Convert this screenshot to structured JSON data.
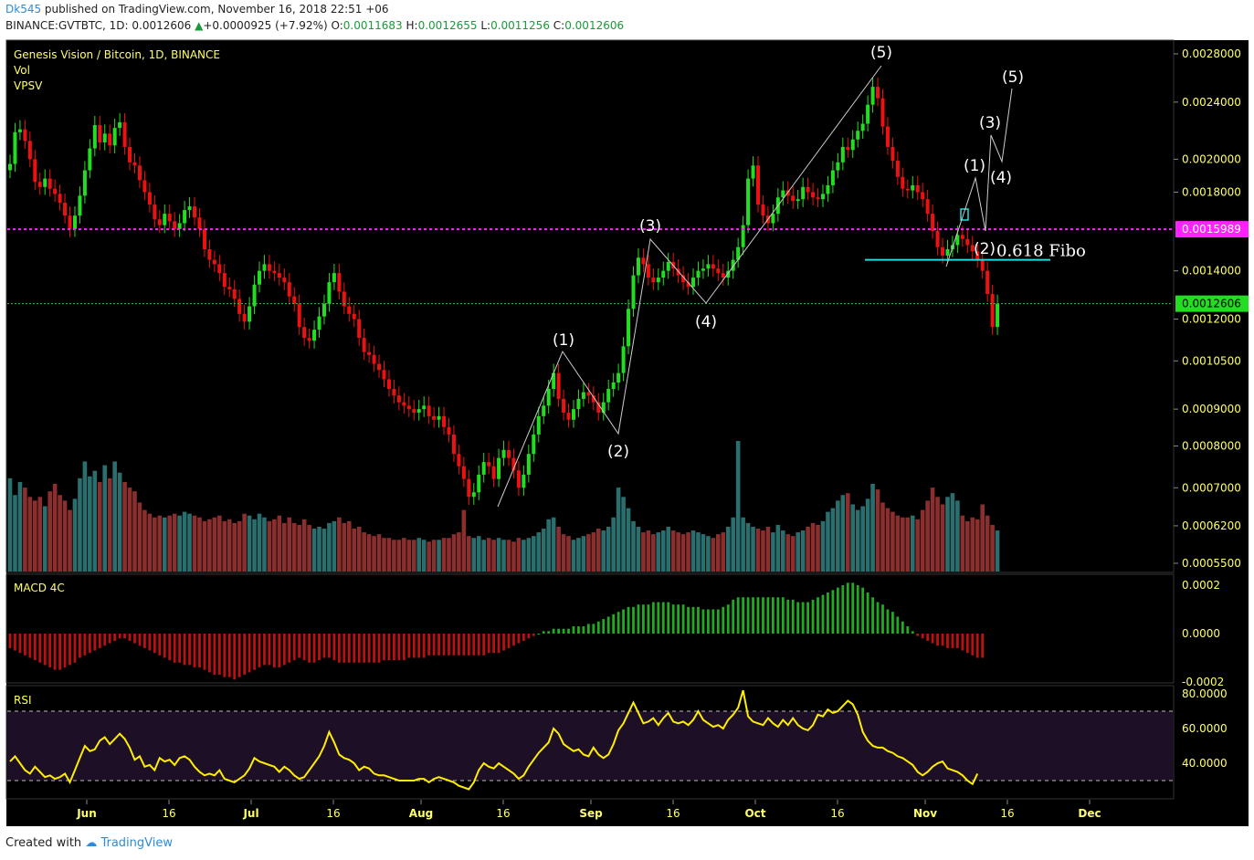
{
  "header": {
    "user": "Dk545",
    "published": "published on TradingView.com, November 16, 2018 22:51 +06",
    "symbol": "BINANCE:GVTBTC, 1D",
    "last": "0.0012606",
    "arrow": "▲",
    "change": "+0.0000925 (+7.92%)",
    "o_label": "O:",
    "o": "0.0011683",
    "h_label": "H:",
    "h": "0.0012655",
    "l_label": "L:",
    "l": "0.0011256",
    "c_label": "C:",
    "c": "0.0012606"
  },
  "legend": {
    "title": "Genesis Vision / Bitcoin, 1D, BINANCE",
    "vol": "Vol",
    "vpsv": "VPSV",
    "macd": "MACD 4C",
    "rsi": "RSI"
  },
  "footer": {
    "created": "Created with",
    "brand": "TradingView"
  },
  "colors": {
    "background": "#000000",
    "up": "#22dd22",
    "down": "#ee1111",
    "vol_up": "#2a6e6e",
    "vol_down": "#8a2e2e",
    "macd_pos": "#22aa22",
    "macd_neg": "#bb1111",
    "rsi_line": "#ffee00",
    "rsi_band": "#1c0f26",
    "magenta_line": "#ff22ff",
    "fibo_line": "#22dddd",
    "axis_text": "#ffff66"
  },
  "chart_data": {
    "type": "candlestick",
    "title": "Genesis Vision / Bitcoin, 1D, BINANCE",
    "y_scale": "log",
    "price_ticks": [
      "0.0028000",
      "0.0024000",
      "0.0020000",
      "0.0018000",
      "0.0014000",
      "0.0012000",
      "0.0010500",
      "0.0009000",
      "0.0008000",
      "0.0007000",
      "0.0006200",
      "0.0005500"
    ],
    "price_tick_values": [
      0.0028,
      0.0024,
      0.002,
      0.0018,
      0.0014,
      0.0012,
      0.00105,
      0.0009,
      0.0008,
      0.0007,
      0.00062,
      0.00055
    ],
    "x_ticks": [
      "Jun",
      "16",
      "Jul",
      "16",
      "Aug",
      "16",
      "Sep",
      "16",
      "Oct",
      "16",
      "Nov",
      "16",
      "Dec"
    ],
    "marked_levels": [
      {
        "label": "0.0015989",
        "value": 0.0015989,
        "color": "#ff22ff"
      },
      {
        "label": "0.0012606",
        "value": 0.0012606,
        "color": "#22dd22"
      }
    ],
    "fibo": {
      "label": "0.618 Fibo",
      "value": 0.00145
    },
    "closes": [
      0.00197,
      0.00218,
      0.0022,
      0.00212,
      0.002,
      0.00186,
      0.00183,
      0.00188,
      0.00182,
      0.00179,
      0.00174,
      0.00167,
      0.0016,
      0.00167,
      0.00178,
      0.00193,
      0.00207,
      0.00223,
      0.00211,
      0.00217,
      0.00209,
      0.00221,
      0.00225,
      0.00208,
      0.00198,
      0.00196,
      0.00187,
      0.0018,
      0.00173,
      0.00165,
      0.00162,
      0.00168,
      0.00164,
      0.0016,
      0.00163,
      0.0017,
      0.00172,
      0.00166,
      0.0016,
      0.0015,
      0.00145,
      0.00143,
      0.00139,
      0.00133,
      0.00132,
      0.00128,
      0.00122,
      0.00119,
      0.00125,
      0.00134,
      0.0014,
      0.00143,
      0.0014,
      0.00139,
      0.00137,
      0.00135,
      0.00129,
      0.00126,
      0.00117,
      0.00113,
      0.00112,
      0.00116,
      0.00121,
      0.00126,
      0.00135,
      0.00139,
      0.00131,
      0.00125,
      0.00122,
      0.0012,
      0.00113,
      0.00108,
      0.00107,
      0.00104,
      0.00102,
      0.00099,
      0.00096,
      0.00094,
      0.00092,
      0.00091,
      0.0009,
      0.00089,
      0.0009,
      0.00091,
      0.00088,
      0.00087,
      0.00088,
      0.00085,
      0.00083,
      0.00078,
      0.00075,
      0.00072,
      0.00068,
      0.00069,
      0.00073,
      0.00076,
      0.00075,
      0.00072,
      0.00077,
      0.00079,
      0.00077,
      0.00074,
      0.0007,
      0.00073,
      0.00078,
      0.00083,
      0.00088,
      0.00091,
      0.00096,
      0.00101,
      0.00093,
      0.00089,
      0.00087,
      0.0009,
      0.00093,
      0.00095,
      0.00094,
      0.00092,
      0.00089,
      0.00092,
      0.00096,
      0.00098,
      0.00101,
      0.0011,
      0.00124,
      0.00138,
      0.00146,
      0.00143,
      0.00137,
      0.00135,
      0.00137,
      0.0014,
      0.00144,
      0.00141,
      0.00138,
      0.00135,
      0.00133,
      0.00137,
      0.0014,
      0.00141,
      0.00143,
      0.00141,
      0.00139,
      0.00137,
      0.0014,
      0.00145,
      0.00151,
      0.00162,
      0.00188,
      0.00196,
      0.00173,
      0.00167,
      0.00163,
      0.00168,
      0.00177,
      0.00181,
      0.00178,
      0.00175,
      0.00176,
      0.00183,
      0.0018,
      0.00177,
      0.00176,
      0.00179,
      0.00184,
      0.00193,
      0.00198,
      0.00208,
      0.00206,
      0.00213,
      0.00219,
      0.00224,
      0.00238,
      0.00252,
      0.00243,
      0.00222,
      0.00208,
      0.00199,
      0.00189,
      0.00182,
      0.00181,
      0.00184,
      0.0018,
      0.00176,
      0.00168,
      0.00159,
      0.00151,
      0.00147,
      0.0015,
      0.00152,
      0.00157,
      0.00155,
      0.00152,
      0.00149,
      0.00145,
      0.0014,
      0.0013,
      0.00117,
      0.00126
    ],
    "volumes": [
      50,
      41,
      48,
      45,
      40,
      38,
      40,
      35,
      43,
      47,
      41,
      38,
      33,
      39,
      50,
      59,
      51,
      54,
      48,
      57,
      50,
      59,
      53,
      48,
      45,
      43,
      37,
      33,
      31,
      29,
      30,
      29,
      30,
      31,
      30,
      32,
      31,
      30,
      29,
      27,
      28,
      29,
      30,
      27,
      28,
      26,
      27,
      31,
      30,
      28,
      31,
      29,
      27,
      28,
      30,
      26,
      29,
      26,
      25,
      28,
      25,
      23,
      24,
      23,
      26,
      27,
      29,
      26,
      27,
      23,
      24,
      21,
      20,
      19,
      20,
      18,
      18,
      17,
      17,
      18,
      17,
      17,
      18,
      17,
      16,
      17,
      17,
      18,
      18,
      20,
      21,
      33,
      19,
      18,
      19,
      17,
      18,
      17,
      18,
      17,
      17,
      16,
      18,
      17,
      18,
      19,
      21,
      23,
      28,
      29,
      24,
      20,
      19,
      17,
      18,
      19,
      20,
      21,
      23,
      22,
      24,
      29,
      45,
      40,
      34,
      27,
      24,
      21,
      22,
      20,
      21,
      22,
      24,
      22,
      21,
      20,
      21,
      22,
      21,
      20,
      19,
      18,
      20,
      21,
      24,
      29,
      70,
      29,
      26,
      24,
      23,
      22,
      24,
      21,
      25,
      22,
      20,
      19,
      21,
      22,
      24,
      26,
      25,
      27,
      32,
      34,
      38,
      41,
      42,
      36,
      33,
      35,
      39,
      47,
      44,
      37,
      34,
      32,
      30,
      29,
      29,
      30,
      28,
      33,
      38,
      45,
      40,
      36,
      40,
      42,
      38,
      30,
      27,
      29,
      28,
      36,
      30,
      25,
      22
    ],
    "macd_hist": [
      -6e-05,
      -7e-05,
      -8e-05,
      -9e-05,
      -0.0001,
      -0.00011,
      -0.00012,
      -0.00013,
      -0.00014,
      -0.00015,
      -0.00015,
      -0.00014,
      -0.00013,
      -0.00012,
      -0.0001,
      -9e-05,
      -8e-05,
      -7e-05,
      -6e-05,
      -5e-05,
      -4e-05,
      -3e-05,
      -2e-05,
      -2e-05,
      -3e-05,
      -4e-05,
      -5e-05,
      -6e-05,
      -7e-05,
      -8e-05,
      -9e-05,
      -0.0001,
      -0.00011,
      -0.00012,
      -0.00012,
      -0.00013,
      -0.00013,
      -0.00014,
      -0.00014,
      -0.00015,
      -0.00016,
      -0.00017,
      -0.00017,
      -0.00018,
      -0.00018,
      -0.00019,
      -0.00018,
      -0.00017,
      -0.00016,
      -0.00015,
      -0.00014,
      -0.00013,
      -0.00013,
      -0.00014,
      -0.00014,
      -0.00013,
      -0.00012,
      -0.00011,
      -0.0001,
      -0.00011,
      -0.00012,
      -0.00012,
      -0.00011,
      -0.0001,
      -0.0001,
      -0.00011,
      -0.00012,
      -0.00012,
      -0.00012,
      -0.00012,
      -0.00012,
      -0.00012,
      -0.00012,
      -0.00012,
      -0.00012,
      -0.00011,
      -0.00011,
      -0.00011,
      -0.00011,
      -0.00011,
      -0.0001,
      -0.0001,
      -0.0001,
      -0.0001,
      -9e-05,
      -9e-05,
      -9e-05,
      -9e-05,
      -9e-05,
      -9e-05,
      -9e-05,
      -9e-05,
      -9e-05,
      -9e-05,
      -9e-05,
      -9e-05,
      -8e-05,
      -8e-05,
      -8e-05,
      -7e-05,
      -6e-05,
      -5e-05,
      -4e-05,
      -3e-05,
      -2e-05,
      -1e-05,
      0.0,
      1e-05,
      1e-05,
      2e-05,
      2e-05,
      2e-05,
      2e-05,
      3e-05,
      3e-05,
      3e-05,
      4e-05,
      4e-05,
      5e-05,
      6e-05,
      7e-05,
      8e-05,
      9e-05,
      0.0001,
      0.00011,
      0.00011,
      0.00012,
      0.00012,
      0.00012,
      0.00013,
      0.00013,
      0.00013,
      0.00013,
      0.00012,
      0.00012,
      0.00012,
      0.00011,
      0.00011,
      0.00011,
      0.0001,
      0.0001,
      0.0001,
      0.0001,
      0.00011,
      0.00012,
      0.00014,
      0.00015,
      0.00015,
      0.00015,
      0.00015,
      0.00015,
      0.00015,
      0.00015,
      0.00015,
      0.00015,
      0.00015,
      0.00014,
      0.00014,
      0.00013,
      0.00013,
      0.00013,
      0.00014,
      0.00015,
      0.00016,
      0.00017,
      0.00018,
      0.00019,
      0.0002,
      0.00021,
      0.00021,
      0.0002,
      0.00019,
      0.00017,
      0.00015,
      0.00013,
      0.00012,
      0.0001,
      9e-05,
      7e-05,
      5e-05,
      3e-05,
      1e-05,
      -1e-05,
      -2e-05,
      -3e-05,
      -4e-05,
      -5e-05,
      -5e-05,
      -6e-05,
      -6e-05,
      -6e-05,
      -7e-05,
      -8e-05,
      -9e-05,
      -0.0001,
      -0.0001
    ],
    "macd_ticks": [
      "0.0002",
      "0.0000",
      "-0.0002"
    ],
    "macd_tick_values": [
      0.0002,
      0.0,
      -0.0002
    ],
    "rsi": [
      41,
      44,
      40,
      36,
      34,
      38,
      35,
      32,
      33,
      31,
      32,
      34,
      29,
      36,
      43,
      50,
      47,
      48,
      53,
      55,
      51,
      54,
      57,
      54,
      49,
      42,
      44,
      38,
      39,
      36,
      43,
      41,
      42,
      39,
      43,
      44,
      42,
      38,
      35,
      33,
      34,
      33,
      36,
      31,
      30,
      29,
      31,
      33,
      37,
      43,
      41,
      40,
      39,
      38,
      35,
      38,
      36,
      33,
      31,
      32,
      36,
      40,
      44,
      50,
      58,
      52,
      45,
      43,
      42,
      40,
      36,
      38,
      37,
      34,
      33,
      33,
      32,
      31,
      30,
      30,
      30,
      30,
      31,
      31,
      29,
      31,
      32,
      31,
      30,
      29,
      27,
      26,
      25,
      29,
      36,
      40,
      38,
      37,
      40,
      38,
      36,
      34,
      31,
      33,
      38,
      42,
      46,
      49,
      52,
      60,
      57,
      51,
      49,
      47,
      48,
      45,
      44,
      49,
      45,
      43,
      45,
      51,
      59,
      63,
      69,
      75,
      69,
      63,
      64,
      66,
      62,
      66,
      69,
      64,
      63,
      64,
      62,
      65,
      70,
      65,
      63,
      61,
      62,
      60,
      65,
      68,
      72,
      82,
      67,
      64,
      63,
      62,
      66,
      63,
      61,
      65,
      62,
      66,
      62,
      60,
      59,
      62,
      68,
      67,
      71,
      69,
      70,
      73,
      76,
      74,
      68,
      58,
      53,
      50,
      49,
      49,
      47,
      46,
      44,
      43,
      41,
      39,
      35,
      33,
      35,
      38,
      40,
      41,
      37,
      36,
      35,
      33,
      30,
      28,
      34
    ],
    "rsi_ticks": [
      "80.0000",
      "60.0000",
      "40.0000"
    ],
    "rsi_tick_values": [
      80,
      60,
      40
    ],
    "waves": [
      {
        "label": "(1)"
      },
      {
        "label": "(2)"
      },
      {
        "label": "(3)"
      },
      {
        "label": "(4)"
      },
      {
        "label": "(5)"
      },
      {
        "label": "(1)"
      },
      {
        "label": "(2)"
      },
      {
        "label": "(3)"
      },
      {
        "label": "(4)"
      },
      {
        "label": "(5)"
      }
    ]
  }
}
